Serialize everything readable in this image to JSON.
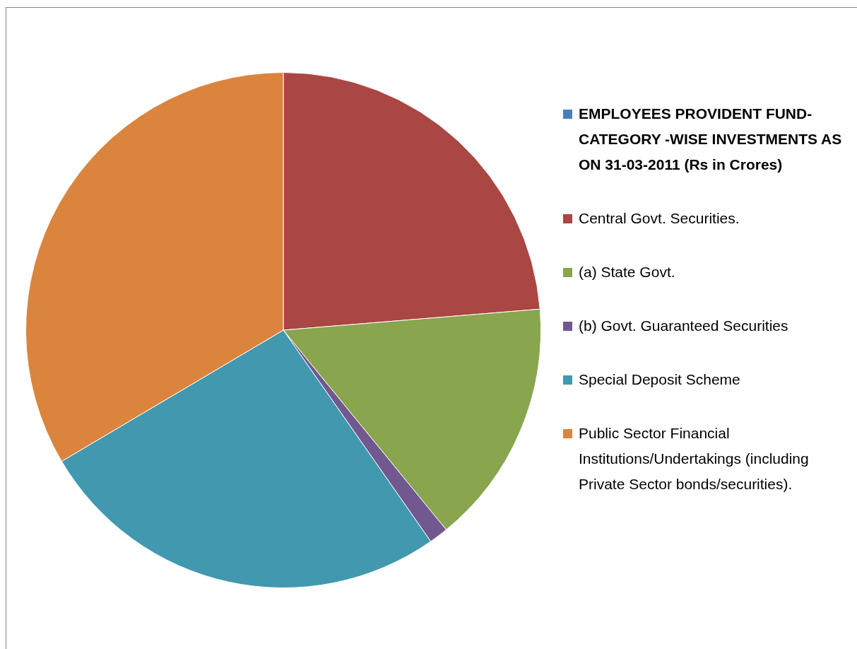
{
  "chart_data": {
    "type": "pie",
    "categories": [
      "EMPLOYEES PROVIDENT FUND-CATEGORY -WISE INVESTMENTS AS ON 31-03-2011 (Rs in Crores)",
      "Central Govt. Securities.",
      "(a) State Govt.",
      "(b) Govt. Guaranteed Securities",
      "Special  Deposit Scheme",
      "Public Sector Financial Institutions/Undertakings (including Private Sector bonds/securities)."
    ],
    "values": [
      0,
      23.7,
      15.4,
      1.2,
      26.2,
      33.5
    ],
    "colors": [
      "#4a7ebb",
      "#aa4643",
      "#89a54e",
      "#71588f",
      "#4198af",
      "#db843d"
    ],
    "legend": "right"
  }
}
